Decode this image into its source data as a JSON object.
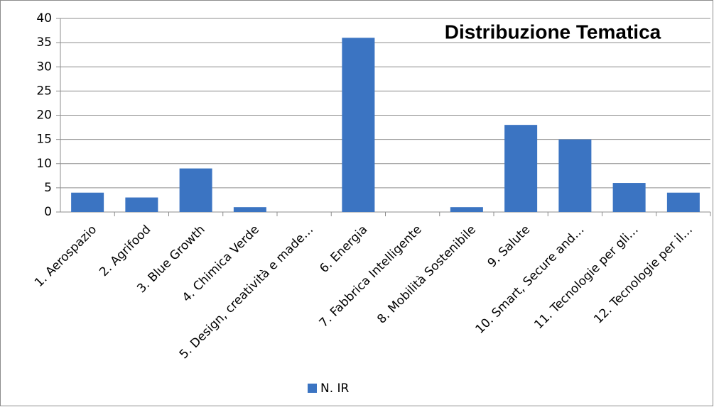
{
  "chart_data": {
    "type": "bar",
    "title": "Distribuzione Tematica",
    "categories": [
      "1. Aerospazio",
      "2. Agrifood",
      "3. Blue Growth",
      "4. Chimica Verde",
      "5. Design, creatività e made…",
      "6. Energia",
      "7. Fabbrica Intelligente",
      "8. Mobilità Sostenibile",
      "9. Salute",
      "10. Smart, Secure and…",
      "11. Tecnologie per gli…",
      "12. Tecnologie per il…"
    ],
    "series": [
      {
        "name": "N. IR",
        "color": "#3b74c2",
        "values": [
          4,
          3,
          9,
          1,
          0,
          36,
          0,
          1,
          18,
          15,
          6,
          4
        ]
      }
    ],
    "ylim": [
      0,
      40
    ],
    "yticks": [
      0,
      5,
      10,
      15,
      20,
      25,
      30,
      35,
      40
    ],
    "grid": true,
    "legend": "bottom"
  }
}
